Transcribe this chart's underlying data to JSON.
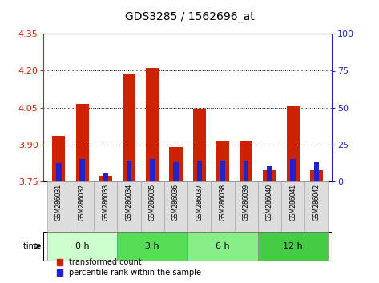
{
  "title": "GDS3285 / 1562696_at",
  "samples": [
    "GSM286031",
    "GSM286032",
    "GSM286033",
    "GSM286034",
    "GSM286035",
    "GSM286036",
    "GSM286037",
    "GSM286038",
    "GSM286039",
    "GSM286040",
    "GSM286041",
    "GSM286042"
  ],
  "transformed_count": [
    3.935,
    4.065,
    3.77,
    4.185,
    4.21,
    3.89,
    4.045,
    3.915,
    3.915,
    3.795,
    4.055,
    3.795
  ],
  "percentile_rank": [
    12,
    15,
    5,
    14,
    15,
    13,
    14,
    14,
    14,
    10,
    15,
    13
  ],
  "ylim_left": [
    3.75,
    4.35
  ],
  "ylim_right": [
    0,
    100
  ],
  "yticks_left": [
    3.75,
    3.9,
    4.05,
    4.2,
    4.35
  ],
  "yticks_right": [
    0,
    25,
    50,
    75,
    100
  ],
  "gridlines": [
    3.9,
    4.05,
    4.2
  ],
  "time_groups": [
    {
      "label": "0 h",
      "samples": [
        0,
        1,
        2
      ],
      "color": "#ccffcc"
    },
    {
      "label": "3 h",
      "samples": [
        3,
        4,
        5
      ],
      "color": "#55dd55"
    },
    {
      "label": "6 h",
      "samples": [
        6,
        7,
        8
      ],
      "color": "#88ee88"
    },
    {
      "label": "12 h",
      "samples": [
        9,
        10,
        11
      ],
      "color": "#44cc44"
    }
  ],
  "bar_width": 0.55,
  "blue_bar_width": 0.22,
  "red_color": "#cc2200",
  "blue_color": "#2222cc",
  "baseline": 3.75,
  "legend_red": "transformed count",
  "legend_blue": "percentile rank within the sample",
  "sample_box_color": "#dddddd",
  "sample_box_edge": "#aaaaaa"
}
